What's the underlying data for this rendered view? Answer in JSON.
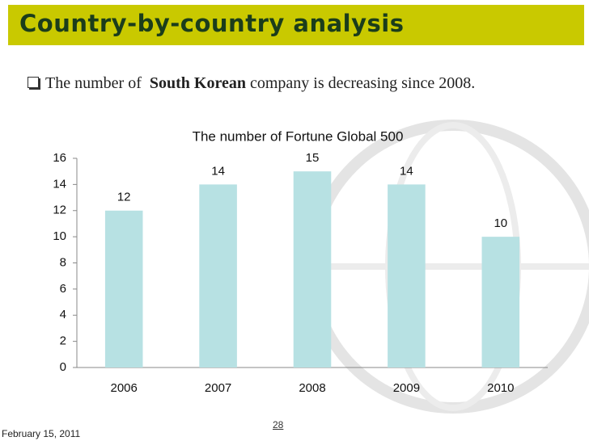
{
  "slide": {
    "title": "Country-by-country analysis",
    "bullet": [
      "The number of",
      "South Korean",
      "company is decreasing since 2008."
    ],
    "date": "February 15, 2011",
    "page": "28"
  },
  "chart_data": {
    "type": "bar",
    "title": "The number of Fortune Global 500",
    "categories": [
      "2006",
      "2007",
      "2008",
      "2009",
      "2010"
    ],
    "values": [
      12,
      14,
      15,
      14,
      10
    ],
    "color": "#b7e1e3",
    "ylim": [
      0,
      16
    ],
    "yticks": [
      0,
      2,
      4,
      6,
      8,
      10,
      12,
      14,
      16
    ],
    "grid": false
  }
}
